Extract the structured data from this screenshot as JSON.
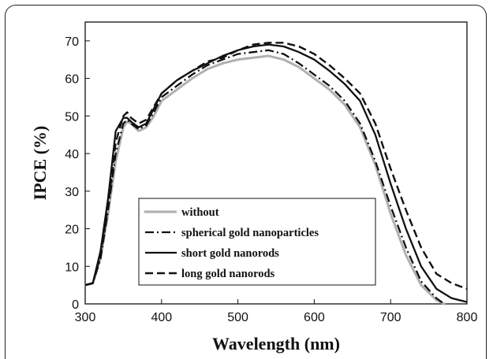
{
  "chart_data": {
    "type": "line",
    "xlabel": "Wavelength (nm)",
    "ylabel": "IPCE (%)",
    "xlim": [
      300,
      800
    ],
    "ylim": [
      0,
      75
    ],
    "xticks": [
      "300",
      "400",
      "500",
      "600",
      "700",
      "800"
    ],
    "yticks": [
      "0",
      "10",
      "20",
      "30",
      "40",
      "50",
      "60",
      "70"
    ],
    "grid": false,
    "legend_position": "bottom-left",
    "series": [
      {
        "name": "without",
        "style": "dotted",
        "color": "#b0b0b0",
        "x": [
          300,
          310,
          320,
          330,
          340,
          350,
          355,
          360,
          370,
          380,
          390,
          400,
          420,
          440,
          460,
          480,
          500,
          520,
          540,
          560,
          580,
          600,
          620,
          640,
          660,
          680,
          700,
          720,
          740,
          760,
          770
        ],
        "y": [
          5,
          5.5,
          12,
          24,
          38,
          47,
          48.5,
          48,
          46,
          47,
          50,
          54,
          57,
          60,
          62.5,
          64,
          65,
          65.5,
          66,
          65,
          63,
          60,
          57,
          53,
          47,
          37,
          24,
          13,
          5,
          1,
          0
        ]
      },
      {
        "name": "spherical gold nanoparticles",
        "style": "dash-dot",
        "color": "#111111",
        "x": [
          300,
          310,
          320,
          330,
          340,
          350,
          355,
          360,
          370,
          380,
          390,
          400,
          420,
          440,
          460,
          480,
          500,
          520,
          540,
          560,
          580,
          600,
          620,
          640,
          660,
          680,
          700,
          720,
          740,
          760,
          770
        ],
        "y": [
          5,
          5.5,
          12,
          25,
          40,
          48,
          49,
          48,
          46.5,
          47.5,
          51,
          55,
          58,
          61,
          63.5,
          65,
          66.5,
          67,
          67.5,
          66.5,
          64,
          61,
          58,
          54,
          48,
          38,
          26,
          15,
          6,
          1.5,
          0
        ]
      },
      {
        "name": "short gold nanorods",
        "style": "solid",
        "color": "#111111",
        "x": [
          300,
          310,
          320,
          330,
          340,
          350,
          355,
          360,
          370,
          380,
          390,
          400,
          420,
          440,
          460,
          480,
          500,
          520,
          540,
          560,
          580,
          600,
          620,
          640,
          660,
          680,
          700,
          720,
          740,
          760,
          780,
          800
        ],
        "y": [
          5,
          5.5,
          14,
          28,
          46,
          49.5,
          49.5,
          48.5,
          47,
          48,
          52,
          56,
          59.5,
          62,
          64,
          66,
          67.5,
          68.5,
          69,
          68.5,
          67,
          65,
          62,
          58.5,
          54,
          45,
          32,
          20,
          10,
          4,
          1.5,
          0.5
        ]
      },
      {
        "name": "long gold nanorods",
        "style": "dashed",
        "color": "#111111",
        "x": [
          300,
          310,
          320,
          330,
          340,
          350,
          355,
          360,
          370,
          380,
          390,
          400,
          420,
          440,
          460,
          480,
          500,
          520,
          540,
          560,
          580,
          600,
          620,
          640,
          660,
          680,
          700,
          720,
          740,
          760,
          780,
          800
        ],
        "y": [
          5,
          5.5,
          13,
          26,
          43,
          50,
          51,
          49.5,
          48,
          49,
          52.5,
          56,
          59.5,
          62,
          64.5,
          65.5,
          67.5,
          69,
          69.5,
          69.5,
          68.5,
          66.5,
          63.5,
          60,
          56,
          48,
          36,
          25,
          15,
          8,
          5.5,
          4
        ]
      }
    ]
  }
}
